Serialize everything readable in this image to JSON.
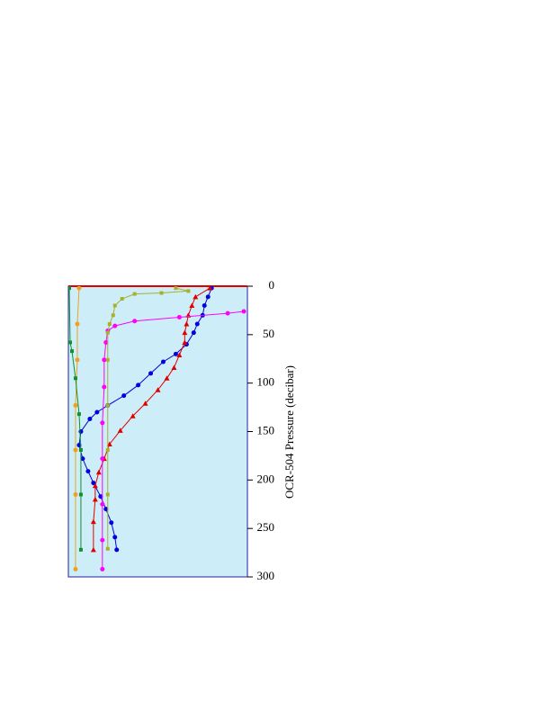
{
  "chart_data": {
    "type": "profile",
    "ylabel": "OCR-504 Pressure (decibar)",
    "ylim": [
      0,
      300
    ],
    "yticks": [
      0,
      50,
      100,
      150,
      200,
      250,
      300
    ],
    "yinverted": true,
    "xlim": [
      0,
      100
    ],
    "background": "#cdeef8",
    "series": [
      {
        "color": "#0000e0",
        "marker": "circle",
        "x": [
          80,
          78,
          76,
          75,
          72,
          70,
          66,
          60,
          53,
          46,
          39,
          31,
          22,
          16,
          12,
          7,
          6,
          8,
          11,
          14,
          18,
          21,
          24,
          26,
          27
        ],
        "values": [
          2,
          11,
          20,
          30,
          39,
          48,
          60,
          70,
          78,
          90,
          102,
          113,
          123,
          130,
          137,
          150,
          164,
          178,
          191,
          203,
          217,
          230,
          244,
          259,
          272
        ]
      },
      {
        "color": "#e00000",
        "marker": "triangle",
        "x": [
          79,
          71,
          69,
          67,
          66,
          65,
          65,
          62,
          59,
          55,
          50,
          43,
          36,
          29,
          23,
          20,
          17,
          15,
          15,
          14,
          14
        ],
        "values": [
          2,
          11,
          20,
          30,
          39,
          48,
          58,
          71,
          84,
          95,
          107,
          121,
          134,
          149,
          163,
          178,
          192,
          206,
          220,
          243,
          272
        ]
      },
      {
        "color": "#ff00ff",
        "marker": "circle",
        "x": [
          98,
          89,
          62,
          37,
          26,
          22,
          21,
          20,
          20,
          19,
          19,
          19,
          19,
          19
        ],
        "values": [
          26,
          28,
          32,
          36,
          41,
          46,
          58,
          76,
          104,
          141,
          178,
          225,
          262,
          292
        ]
      },
      {
        "color": "#a8b030",
        "marker": "square",
        "x": [
          60,
          67,
          52,
          37,
          30,
          26,
          25,
          23,
          22,
          22,
          22,
          22,
          22,
          22
        ],
        "values": [
          2,
          5,
          7,
          8,
          13,
          20,
          30,
          39,
          48,
          76,
          123,
          169,
          215,
          271
        ]
      },
      {
        "color": "#f0a020",
        "marker": "circle",
        "x": [
          6,
          5,
          5,
          4,
          4,
          4,
          4
        ],
        "values": [
          2,
          39,
          76,
          123,
          169,
          215,
          292
        ]
      },
      {
        "color": "#109030",
        "marker": "square",
        "x": [
          0.5,
          1,
          2,
          4,
          6,
          7,
          7,
          7
        ],
        "values": [
          2,
          58,
          67,
          95,
          132,
          169,
          215,
          272
        ]
      }
    ]
  }
}
